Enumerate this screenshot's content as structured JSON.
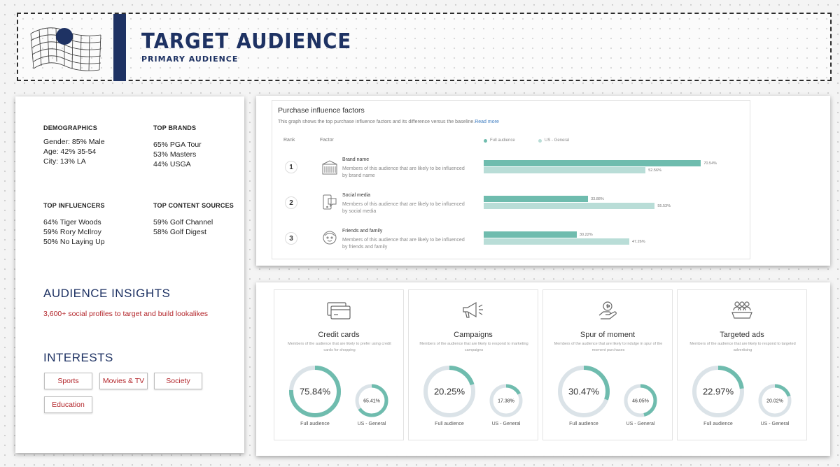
{
  "header": {
    "title": "TARGET AUDIENCE",
    "subtitle": "PRIMARY AUDIENCE"
  },
  "colors": {
    "navy": "#1e3263",
    "accent_red": "#b3262b",
    "teal_full": "#6fbcae",
    "teal_us": "#b9ddd7",
    "ring_track": "#dbe3e8"
  },
  "left": {
    "demographics": {
      "heading": "DEMOGRAPHICS",
      "lines": [
        "Gender: 85% Male",
        "Age: 42% 35-54",
        "City: 13% LA"
      ]
    },
    "top_brands": {
      "heading": "TOP BRANDS",
      "lines": [
        "65% PGA Tour",
        "53% Masters",
        "44% USGA"
      ]
    },
    "top_influencers": {
      "heading": "TOP INFLUENCERS",
      "lines": [
        "64% Tiger Woods",
        "59% Rory McIlroy",
        "50% No Laying Up"
      ]
    },
    "top_content_sources": {
      "heading": "TOP CONTENT SOURCES",
      "lines": [
        "59% Golf Channel",
        "58% Golf Digest"
      ]
    },
    "audience_insights": {
      "heading": "AUDIENCE INSIGHTS",
      "text": "3,600+ social profiles to target and build lookalikes"
    },
    "interests": {
      "heading": "INTERESTS",
      "chips": [
        "Sports",
        "Movies & TV",
        "Society",
        "Education"
      ]
    }
  },
  "purchase_influence": {
    "title": "Purchase influence factors",
    "description": "This graph shows the top purchase influence factors and its difference versus the baseline.",
    "read_more": "Read more",
    "col_rank": "Rank",
    "col_factor": "Factor",
    "legend_full": "Full audience",
    "legend_us": "US - General",
    "rows": [
      {
        "rank": "1",
        "icon": "building-icon",
        "name": "Brand name",
        "desc": "Members of this audience that are likely to be influenced by brand name",
        "full": 70.54,
        "us": 52.56,
        "full_label": "70.54%",
        "us_label": "52.56%"
      },
      {
        "rank": "2",
        "icon": "social-media-icon",
        "name": "Social media",
        "desc": "Members of this audience that are likely to be influenced by social media",
        "full": 33.88,
        "us": 55.53,
        "full_label": "33.88%",
        "us_label": "55.53%"
      },
      {
        "rank": "3",
        "icon": "face-icon",
        "name": "Friends and family",
        "desc": "Members of this audience that are likely to be influenced by friends and family",
        "full": 30.22,
        "us": 47.26,
        "full_label": "30.22%",
        "us_label": "47.26%"
      }
    ]
  },
  "panels": [
    {
      "icon": "credit-card-icon",
      "title": "Credit cards",
      "desc": "Members of the audience that are likely to prefer using credit cards for shopping",
      "full": 75.84,
      "us": 65.41,
      "full_label": "75.84%",
      "us_label": "65.41%",
      "full_caption": "Full audience",
      "us_caption": "US - General"
    },
    {
      "icon": "megaphone-icon",
      "title": "Campaigns",
      "desc": "Members of the audience that are likely to respond to marketing campaigns",
      "full": 20.25,
      "us": 17.38,
      "full_label": "20.25%",
      "us_label": "17.38%",
      "full_caption": "Full audience",
      "us_caption": "US - General"
    },
    {
      "icon": "hand-money-icon",
      "title": "Spur of moment",
      "desc": "Members of the audience that are likely to indulge in spur of the moment purchases",
      "full": 30.47,
      "us": 46.05,
      "full_label": "30.47%",
      "us_label": "46.05%",
      "full_caption": "Full audience",
      "us_caption": "US - General"
    },
    {
      "icon": "people-group-icon",
      "title": "Targeted ads",
      "desc": "Members of the audience that are likely to respond to targeted advertising",
      "full": 22.97,
      "us": 20.02,
      "full_label": "22.97%",
      "us_label": "20.02%",
      "full_caption": "Full audience",
      "us_caption": "US - General"
    }
  ]
}
